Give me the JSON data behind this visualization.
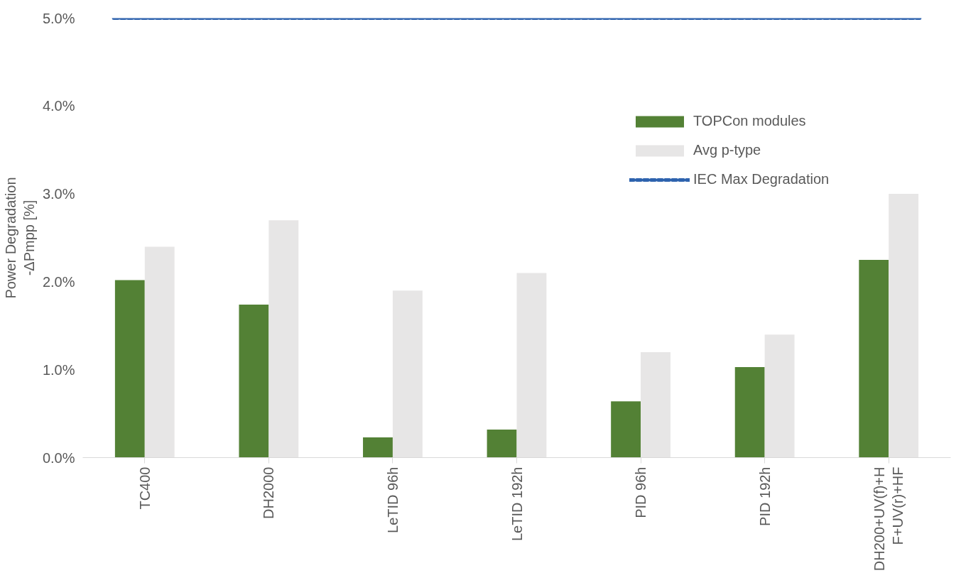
{
  "chart_data": {
    "type": "bar",
    "ylabel": "Power Degradation\n-ΔPmpp [%]",
    "categories": [
      "TC400",
      "DH2000",
      "LeTID 96h",
      "LeTID 192h",
      "PID 96h",
      "PID 192h",
      "DH200+UV(f)+HF+UV(r)+HF"
    ],
    "series": [
      {
        "name": "TOPCon modules",
        "color": "#538135",
        "values": [
          2.02,
          1.74,
          0.23,
          0.32,
          0.64,
          1.03,
          2.25
        ]
      },
      {
        "name": "Avg p-type",
        "color": "#e7e6e6",
        "values": [
          2.4,
          2.7,
          1.9,
          2.1,
          1.2,
          1.4,
          3.0
        ]
      }
    ],
    "ref_lines": [
      {
        "axis": "y",
        "value": 5.0,
        "label": "IEC Max Degradation",
        "color": "#2e63ae",
        "line_style": "dashed"
      }
    ],
    "ylim": [
      0,
      5
    ],
    "yticks": [
      {
        "value": 0,
        "label": "0.0%"
      },
      {
        "value": 1,
        "label": "1.0%"
      },
      {
        "value": 2,
        "label": "2.0%"
      },
      {
        "value": 3,
        "label": "3.0%"
      },
      {
        "value": 4,
        "label": "4.0%"
      },
      {
        "value": 5,
        "label": "5.0%"
      }
    ],
    "grid": false,
    "legend": "top right"
  }
}
